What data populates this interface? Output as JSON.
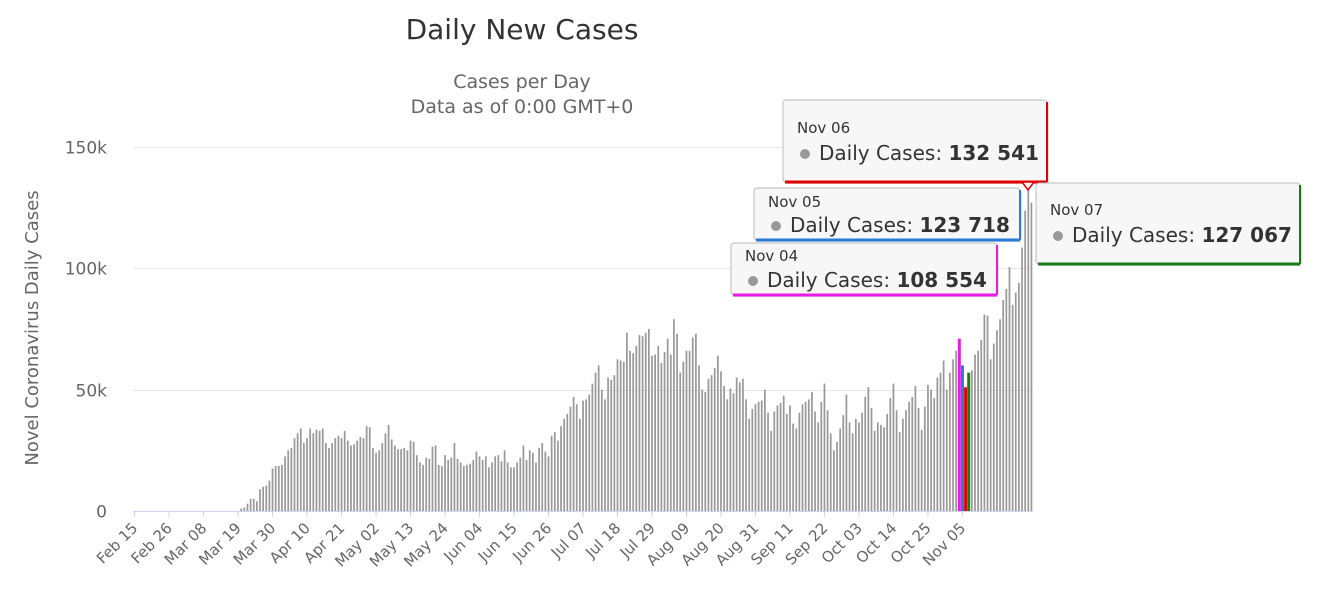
{
  "chart_data": {
    "type": "bar",
    "title": "Daily New Cases",
    "subtitles": [
      "Cases per Day",
      "Data as of 0:00 GMT+0"
    ],
    "ylabel": "Novel Coronavirus Daily Cases",
    "xlabel": "",
    "ylim": [
      0,
      150000
    ],
    "y_ticks": [
      0,
      50000,
      100000,
      150000
    ],
    "y_tick_labels": [
      "0",
      "50k",
      "100k",
      "150k"
    ],
    "x_tick_labels": [
      "Feb 15",
      "Feb 26",
      "Mar 08",
      "Mar 19",
      "Mar 30",
      "Apr 10",
      "Apr 21",
      "May 02",
      "May 13",
      "May 24",
      "Jun 04",
      "Jun 15",
      "Jun 26",
      "Jul 07",
      "Jul 18",
      "Jul 29",
      "Aug 09",
      "Aug 20",
      "Aug 31",
      "Sep 11",
      "Sep 22",
      "Oct 03",
      "Oct 14",
      "Oct 25",
      "Nov 05"
    ],
    "start_date": "Feb 15",
    "series": [
      {
        "name": "Daily Cases",
        "color": "#999999",
        "values": [
          0,
          0,
          0,
          0,
          0,
          0,
          0,
          0,
          0,
          0,
          0,
          0,
          0,
          0,
          0,
          0,
          0,
          0,
          0,
          0,
          0,
          0,
          0,
          0,
          0,
          0,
          0,
          0,
          0,
          0,
          0,
          0,
          0,
          0,
          1000,
          1500,
          3000,
          5000,
          5000,
          4000,
          9000,
          10000,
          10500,
          12500,
          17500,
          18500,
          18500,
          19000,
          22500,
          25000,
          26000,
          30000,
          32000,
          34000,
          28000,
          30000,
          34000,
          32000,
          33500,
          33000,
          34000,
          28000,
          26000,
          28000,
          30000,
          31000,
          30000,
          33000,
          29000,
          27000,
          27500,
          29000,
          30500,
          30000,
          35000,
          34500,
          26000,
          24000,
          25000,
          28000,
          32000,
          35500,
          29500,
          27000,
          25500,
          25500,
          26000,
          25000,
          29000,
          28500,
          23000,
          20000,
          19000,
          22000,
          21500,
          26500,
          27000,
          19000,
          18500,
          23000,
          21000,
          22000,
          28000,
          21500,
          20000,
          18500,
          19000,
          19500,
          21000,
          24500,
          22500,
          21000,
          22500,
          18000,
          20000,
          22500,
          23000,
          20500,
          25000,
          20000,
          18000,
          18000,
          20000,
          22000,
          27000,
          21000,
          25000,
          24000,
          20000,
          26000,
          28000,
          24500,
          22500,
          31000,
          32500,
          29000,
          35000,
          38000,
          40000,
          43000,
          47000,
          44000,
          38000,
          45500,
          46000,
          48000,
          52500,
          57000,
          60000,
          50000,
          46000,
          55000,
          54000,
          56000,
          62500,
          62000,
          61500,
          73500,
          66000,
          65000,
          68000,
          72500,
          72000,
          73500,
          75000,
          64000,
          64500,
          68000,
          61000,
          65500,
          71000,
          64500,
          79000,
          73000,
          57000,
          61500,
          66000,
          66000,
          71500,
          73000,
          60000,
          50000,
          49000,
          54500,
          56000,
          59000,
          64000,
          57500,
          51500,
          46000,
          50500,
          48500,
          55000,
          53000,
          54500,
          46000,
          38000,
          42000,
          44000,
          45000,
          45500,
          50000,
          40500,
          33000,
          41000,
          43500,
          44500,
          47500,
          40000,
          43500,
          36000,
          34000,
          40500,
          44000,
          45000,
          46000,
          49000,
          41000,
          36500,
          45000,
          52500,
          41500,
          32000,
          25000,
          28500,
          34000,
          39500,
          48000,
          36500,
          32000,
          38000,
          36500,
          40500,
          47000,
          51000,
          42500,
          33000,
          36500,
          35500,
          34500,
          40000,
          46500,
          52500,
          41500,
          32500,
          38000,
          41500,
          45000,
          47000,
          51500,
          42500,
          33500,
          43000,
          52000,
          50000,
          46500,
          55000,
          57000,
          62000,
          50000,
          57000,
          62500,
          66000,
          71000,
          60000,
          51000,
          57000,
          58000,
          64500,
          66000,
          70500,
          81000,
          80500,
          62500,
          69000,
          74500,
          79000,
          87000,
          91500,
          100500,
          85000,
          90000,
          94000,
          108554,
          123718,
          132541,
          127067
        ]
      }
    ],
    "tooltips": [
      {
        "date": "Nov 06",
        "label": "Daily Cases:",
        "value": "132 541",
        "color": "#e00000",
        "index": 265
      },
      {
        "date": "Nov 05",
        "label": "Daily Cases:",
        "value": "123 718",
        "color": "#2a7ad8",
        "index": 264
      },
      {
        "date": "Nov 04",
        "label": "Daily Cases:",
        "value": "108 554",
        "color": "#e81ae8",
        "index": 263
      },
      {
        "date": "Nov 07",
        "label": "Daily Cases:",
        "value": "127 067",
        "color": "#1a7a1a",
        "index": 266
      }
    ]
  }
}
